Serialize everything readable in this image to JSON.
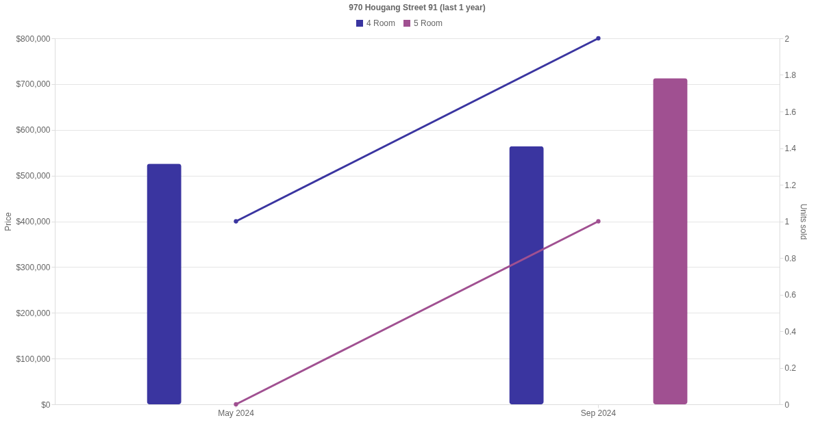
{
  "chart_data": {
    "type": "bar",
    "title": "970 Hougang Street 91 (last 1 year)",
    "categories": [
      "May 2024",
      "Sep 2024"
    ],
    "series": [
      {
        "name": "4 Room",
        "color": "#3a35a0",
        "values": [
          526000,
          564000
        ]
      },
      {
        "name": "5 Room",
        "color": "#a05091",
        "values": [
          null,
          713000
        ]
      },
      {
        "type": "line",
        "axis": "y2",
        "color": "#3a35a0",
        "values": [
          1,
          2
        ]
      },
      {
        "type": "line",
        "axis": "y2",
        "color": "#a05091",
        "values": [
          0,
          1
        ]
      }
    ],
    "ylabel": "Price",
    "y2label": "Units sold",
    "ylim": [
      0,
      800000
    ],
    "yticks": [
      {
        "value": 0,
        "label": "$0"
      },
      {
        "value": 100000,
        "label": "$100,000"
      },
      {
        "value": 200000,
        "label": "$200,000"
      },
      {
        "value": 300000,
        "label": "$300,000"
      },
      {
        "value": 400000,
        "label": "$400,000"
      },
      {
        "value": 500000,
        "label": "$500,000"
      },
      {
        "value": 600000,
        "label": "$600,000"
      },
      {
        "value": 700000,
        "label": "$700,000"
      },
      {
        "value": 800000,
        "label": "$800,000"
      }
    ],
    "y2lim": [
      0,
      2
    ],
    "y2ticks": [
      0,
      0.2,
      0.4,
      0.6,
      0.8,
      1,
      1.2,
      1.4,
      1.6,
      1.8,
      2
    ],
    "grid": "y",
    "legend": "top",
    "marker": "circle"
  }
}
